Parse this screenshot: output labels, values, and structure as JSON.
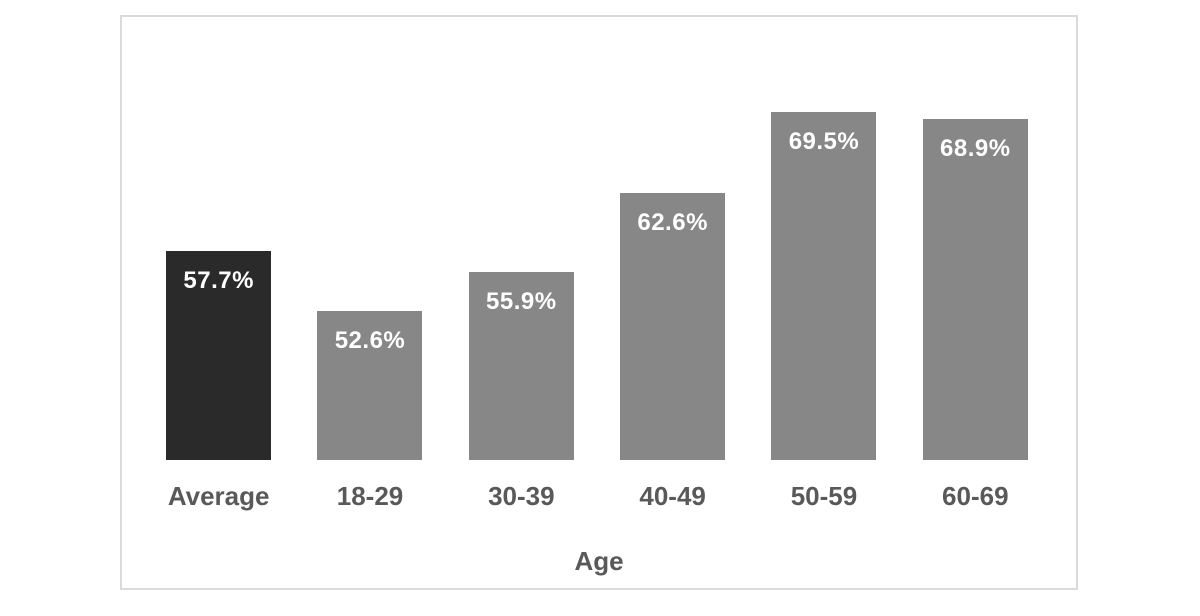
{
  "chart_data": {
    "type": "bar",
    "categories": [
      "Average",
      "18-29",
      "30-39",
      "40-49",
      "50-59",
      "60-69"
    ],
    "values": [
      57.7,
      52.6,
      55.9,
      62.6,
      69.5,
      68.9
    ],
    "value_labels": [
      "57.7%",
      "52.6%",
      "55.9%",
      "62.6%",
      "69.5%",
      "68.9%"
    ],
    "title": "",
    "xlabel": "Age",
    "ylabel": "",
    "ylim": [
      40,
      75
    ],
    "grid": false,
    "legend": null,
    "value_label_position": "inside-top",
    "bar_colors": [
      "#2a2a2a",
      "#878787",
      "#878787",
      "#878787",
      "#878787",
      "#878787"
    ],
    "highlight_category": "Average",
    "colors": {
      "bar_default": "#878787",
      "bar_highlight": "#2a2a2a",
      "value_label_text": "#ffffff",
      "axis_text": "#595959",
      "frame_border": "#d8dadc",
      "background": "#ffffff"
    }
  }
}
